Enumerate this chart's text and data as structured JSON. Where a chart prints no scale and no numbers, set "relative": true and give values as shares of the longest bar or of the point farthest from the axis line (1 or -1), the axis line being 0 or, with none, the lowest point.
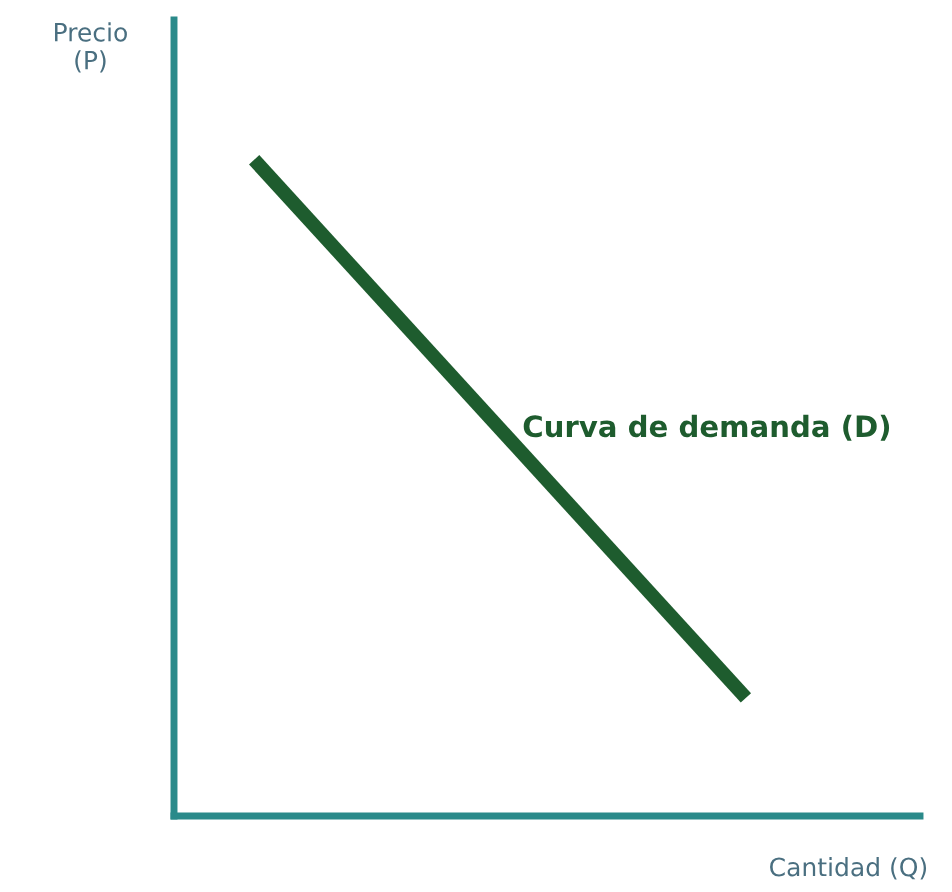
{
  "chart_data": {
    "type": "line",
    "relative": true,
    "xlabel": "Cantidad (Q)",
    "ylabel": "Precio\n(P)",
    "categories": [
      null,
      null
    ],
    "series": [
      {
        "name": "Curva de demanda (D)",
        "color": "#1e5c2e",
        "values": [
          1,
          0.18
        ]
      }
    ],
    "grid": false,
    "legend": false,
    "marker": "none",
    "line_style": "solid"
  }
}
